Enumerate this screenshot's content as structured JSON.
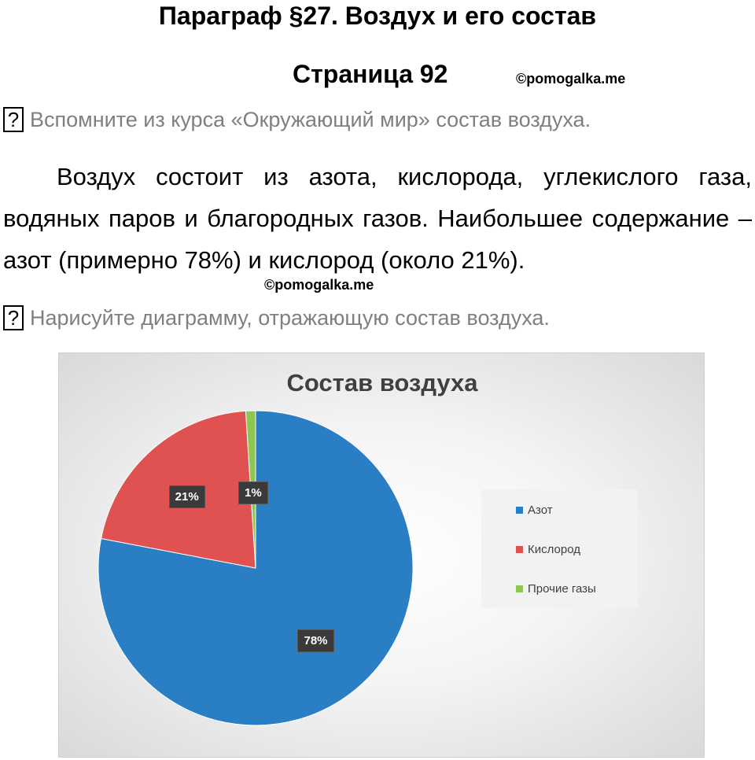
{
  "header": {
    "title": "Параграф §27. Воздух и его состав",
    "page": "Страница 92",
    "watermark": "©pomogalka.me"
  },
  "question1": {
    "mark": "?",
    "text": "Вспомните из курса «Окружающий мир» состав воздуха."
  },
  "answer1": "Воздух состоит из азота, кислорода, углекислого газа, водяных паров и благородных газов. Наибольшее содержание – азот (примерно 78%) и кислород (около 21%).",
  "watermark2": "©pomogalka.me",
  "question2": {
    "mark": "?",
    "text": "Нарисуйте диаграмму, отражающую состав воздуха."
  },
  "chart_data": {
    "type": "pie",
    "title": "Состав воздуха",
    "categories": [
      "Азот",
      "Кислород",
      "Прочие газы"
    ],
    "values": [
      78,
      21,
      1
    ],
    "data_labels": [
      "78%",
      "21%",
      "1%"
    ],
    "colors": [
      "#2a7fc4",
      "#e05151",
      "#8ec64f"
    ],
    "legend_position": "right"
  }
}
